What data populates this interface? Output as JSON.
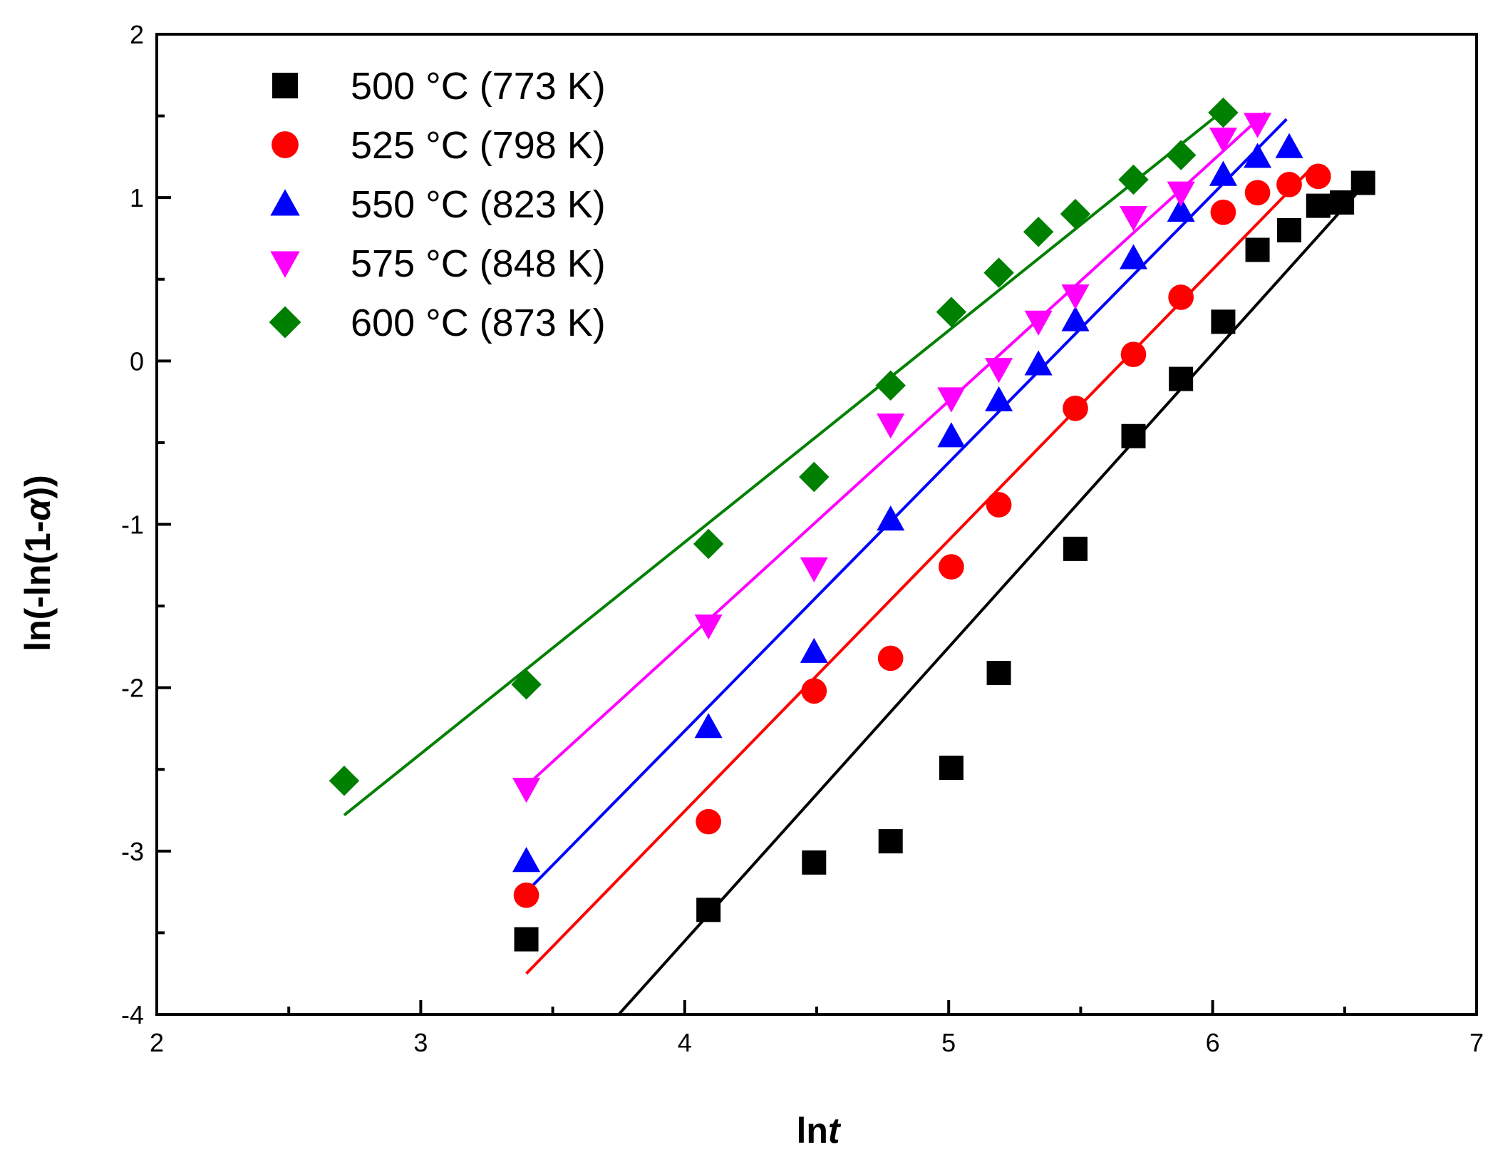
{
  "chart_data": {
    "type": "scatter",
    "title": "",
    "xlabel": {
      "main": "ln",
      "italic": "t"
    },
    "ylabel": {
      "main": "ln(-ln(1-",
      "italic": "α",
      "tail": "))"
    },
    "xlim": [
      2,
      7
    ],
    "ylim": [
      -4,
      2
    ],
    "xticks": [
      2,
      3,
      4,
      5,
      6,
      7
    ],
    "yticks": [
      -4,
      -3,
      -2,
      -1,
      0,
      1,
      2
    ],
    "xtick_labels": [
      "2",
      "3",
      "4",
      "5",
      "6",
      "7"
    ],
    "ytick_labels": [
      "-4",
      "-3",
      "-2",
      "-1",
      "0",
      "1",
      "2"
    ],
    "grid": false,
    "legend_position": "top-left",
    "series": [
      {
        "name": "500 °C (773 K)",
        "color": "#000000",
        "marker": "square",
        "x": [
          3.4,
          4.09,
          4.49,
          4.78,
          5.01,
          5.19,
          5.48,
          5.7,
          5.88,
          6.04,
          6.17,
          6.29,
          6.4,
          6.49,
          6.57
        ],
        "y": [
          -3.54,
          -3.36,
          -3.07,
          -2.94,
          -2.49,
          -1.91,
          -1.15,
          -0.46,
          -0.11,
          0.24,
          0.68,
          0.8,
          0.95,
          0.97,
          1.09
        ],
        "fit": {
          "x": [
            3.75,
            6.57
          ],
          "y": [
            -4.0,
            1.07
          ]
        }
      },
      {
        "name": "525 °C (798 K)",
        "color": "#ff0000",
        "marker": "circle",
        "x": [
          3.4,
          4.09,
          4.49,
          4.78,
          5.01,
          5.19,
          5.48,
          5.7,
          5.88,
          6.04,
          6.17,
          6.29,
          6.4
        ],
        "y": [
          -3.27,
          -2.82,
          -2.02,
          -1.82,
          -1.26,
          -0.88,
          -0.29,
          0.04,
          0.39,
          0.91,
          1.03,
          1.08,
          1.13
        ],
        "fit": {
          "x": [
            3.4,
            6.38
          ],
          "y": [
            -3.75,
            1.19
          ]
        }
      },
      {
        "name": "550 °C (823 K)",
        "color": "#0000ff",
        "marker": "triangle-up",
        "x": [
          3.4,
          4.09,
          4.49,
          4.78,
          5.01,
          5.19,
          5.34,
          5.48,
          5.7,
          5.88,
          6.04,
          6.17,
          6.29
        ],
        "y": [
          -3.06,
          -2.24,
          -1.78,
          -0.97,
          -0.46,
          -0.24,
          -0.02,
          0.25,
          0.63,
          0.92,
          1.14,
          1.25,
          1.31
        ],
        "fit": {
          "x": [
            3.4,
            6.28
          ],
          "y": [
            -3.25,
            1.48
          ]
        }
      },
      {
        "name": "575 °C (848 K)",
        "color": "#ff00ff",
        "marker": "triangle-down",
        "x": [
          3.4,
          4.09,
          4.49,
          4.78,
          5.01,
          5.19,
          5.34,
          5.48,
          5.7,
          5.88,
          6.04,
          6.17
        ],
        "y": [
          -2.62,
          -1.62,
          -1.27,
          -0.39,
          -0.23,
          -0.05,
          0.24,
          0.4,
          0.88,
          1.03,
          1.36,
          1.45
        ],
        "fit": {
          "x": [
            3.4,
            6.2
          ],
          "y": [
            -2.6,
            1.52
          ]
        }
      },
      {
        "name": "600 °C (873 K)",
        "color": "#008000",
        "marker": "diamond",
        "x": [
          2.71,
          3.4,
          4.09,
          4.49,
          4.78,
          5.01,
          5.19,
          5.34,
          5.48,
          5.7,
          5.88,
          6.04
        ],
        "y": [
          -2.57,
          -1.98,
          -1.12,
          -0.71,
          -0.15,
          0.3,
          0.54,
          0.79,
          0.9,
          1.11,
          1.26,
          1.52
        ],
        "fit": {
          "x": [
            2.71,
            6.03
          ],
          "y": [
            -2.78,
            1.52
          ]
        }
      }
    ]
  }
}
